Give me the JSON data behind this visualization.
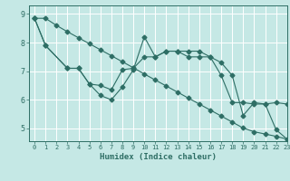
{
  "xlabel": "Humidex (Indice chaleur)",
  "bg_color": "#c5e8e5",
  "line_color": "#2e6e65",
  "grid_color": "#ffffff",
  "xlim": [
    -0.5,
    23
  ],
  "ylim": [
    4.55,
    9.3
  ],
  "yticks": [
    5,
    6,
    7,
    8,
    9
  ],
  "xticks": [
    0,
    1,
    2,
    3,
    4,
    5,
    6,
    7,
    8,
    9,
    10,
    11,
    12,
    13,
    14,
    15,
    16,
    17,
    18,
    19,
    20,
    21,
    22,
    23
  ],
  "series1_x": [
    0,
    1,
    2,
    3,
    4,
    5,
    6,
    7,
    8,
    9,
    10,
    11,
    12,
    13,
    14,
    15,
    16,
    17,
    18,
    19,
    20,
    21,
    22,
    23
  ],
  "series1_y": [
    8.85,
    8.85,
    8.6,
    8.38,
    8.17,
    7.96,
    7.75,
    7.54,
    7.33,
    7.12,
    6.9,
    6.69,
    6.48,
    6.27,
    6.06,
    5.85,
    5.64,
    5.43,
    5.22,
    5.01,
    4.88,
    4.8,
    4.72,
    4.62
  ],
  "series2_x": [
    0,
    1,
    3,
    4,
    5,
    6,
    7,
    8,
    9,
    10,
    11,
    12,
    13,
    14,
    15,
    16,
    17,
    18,
    19,
    20,
    21,
    22,
    23
  ],
  "series2_y": [
    8.85,
    7.9,
    7.1,
    7.1,
    6.55,
    6.15,
    6.0,
    6.45,
    7.05,
    8.2,
    7.5,
    7.7,
    7.7,
    7.7,
    7.7,
    7.5,
    7.3,
    6.85,
    5.45,
    5.9,
    5.85,
    4.95,
    4.62
  ],
  "series3_x": [
    0,
    1,
    3,
    4,
    5,
    6,
    7,
    8,
    9,
    10,
    11,
    12,
    13,
    14,
    15,
    16,
    17,
    18,
    19,
    20,
    21,
    22,
    23
  ],
  "series3_y": [
    8.85,
    7.9,
    7.1,
    7.1,
    6.55,
    6.5,
    6.35,
    7.05,
    7.1,
    7.5,
    7.5,
    7.7,
    7.7,
    7.5,
    7.5,
    7.5,
    6.85,
    5.9,
    5.9,
    5.85,
    5.85,
    5.9,
    5.85
  ]
}
